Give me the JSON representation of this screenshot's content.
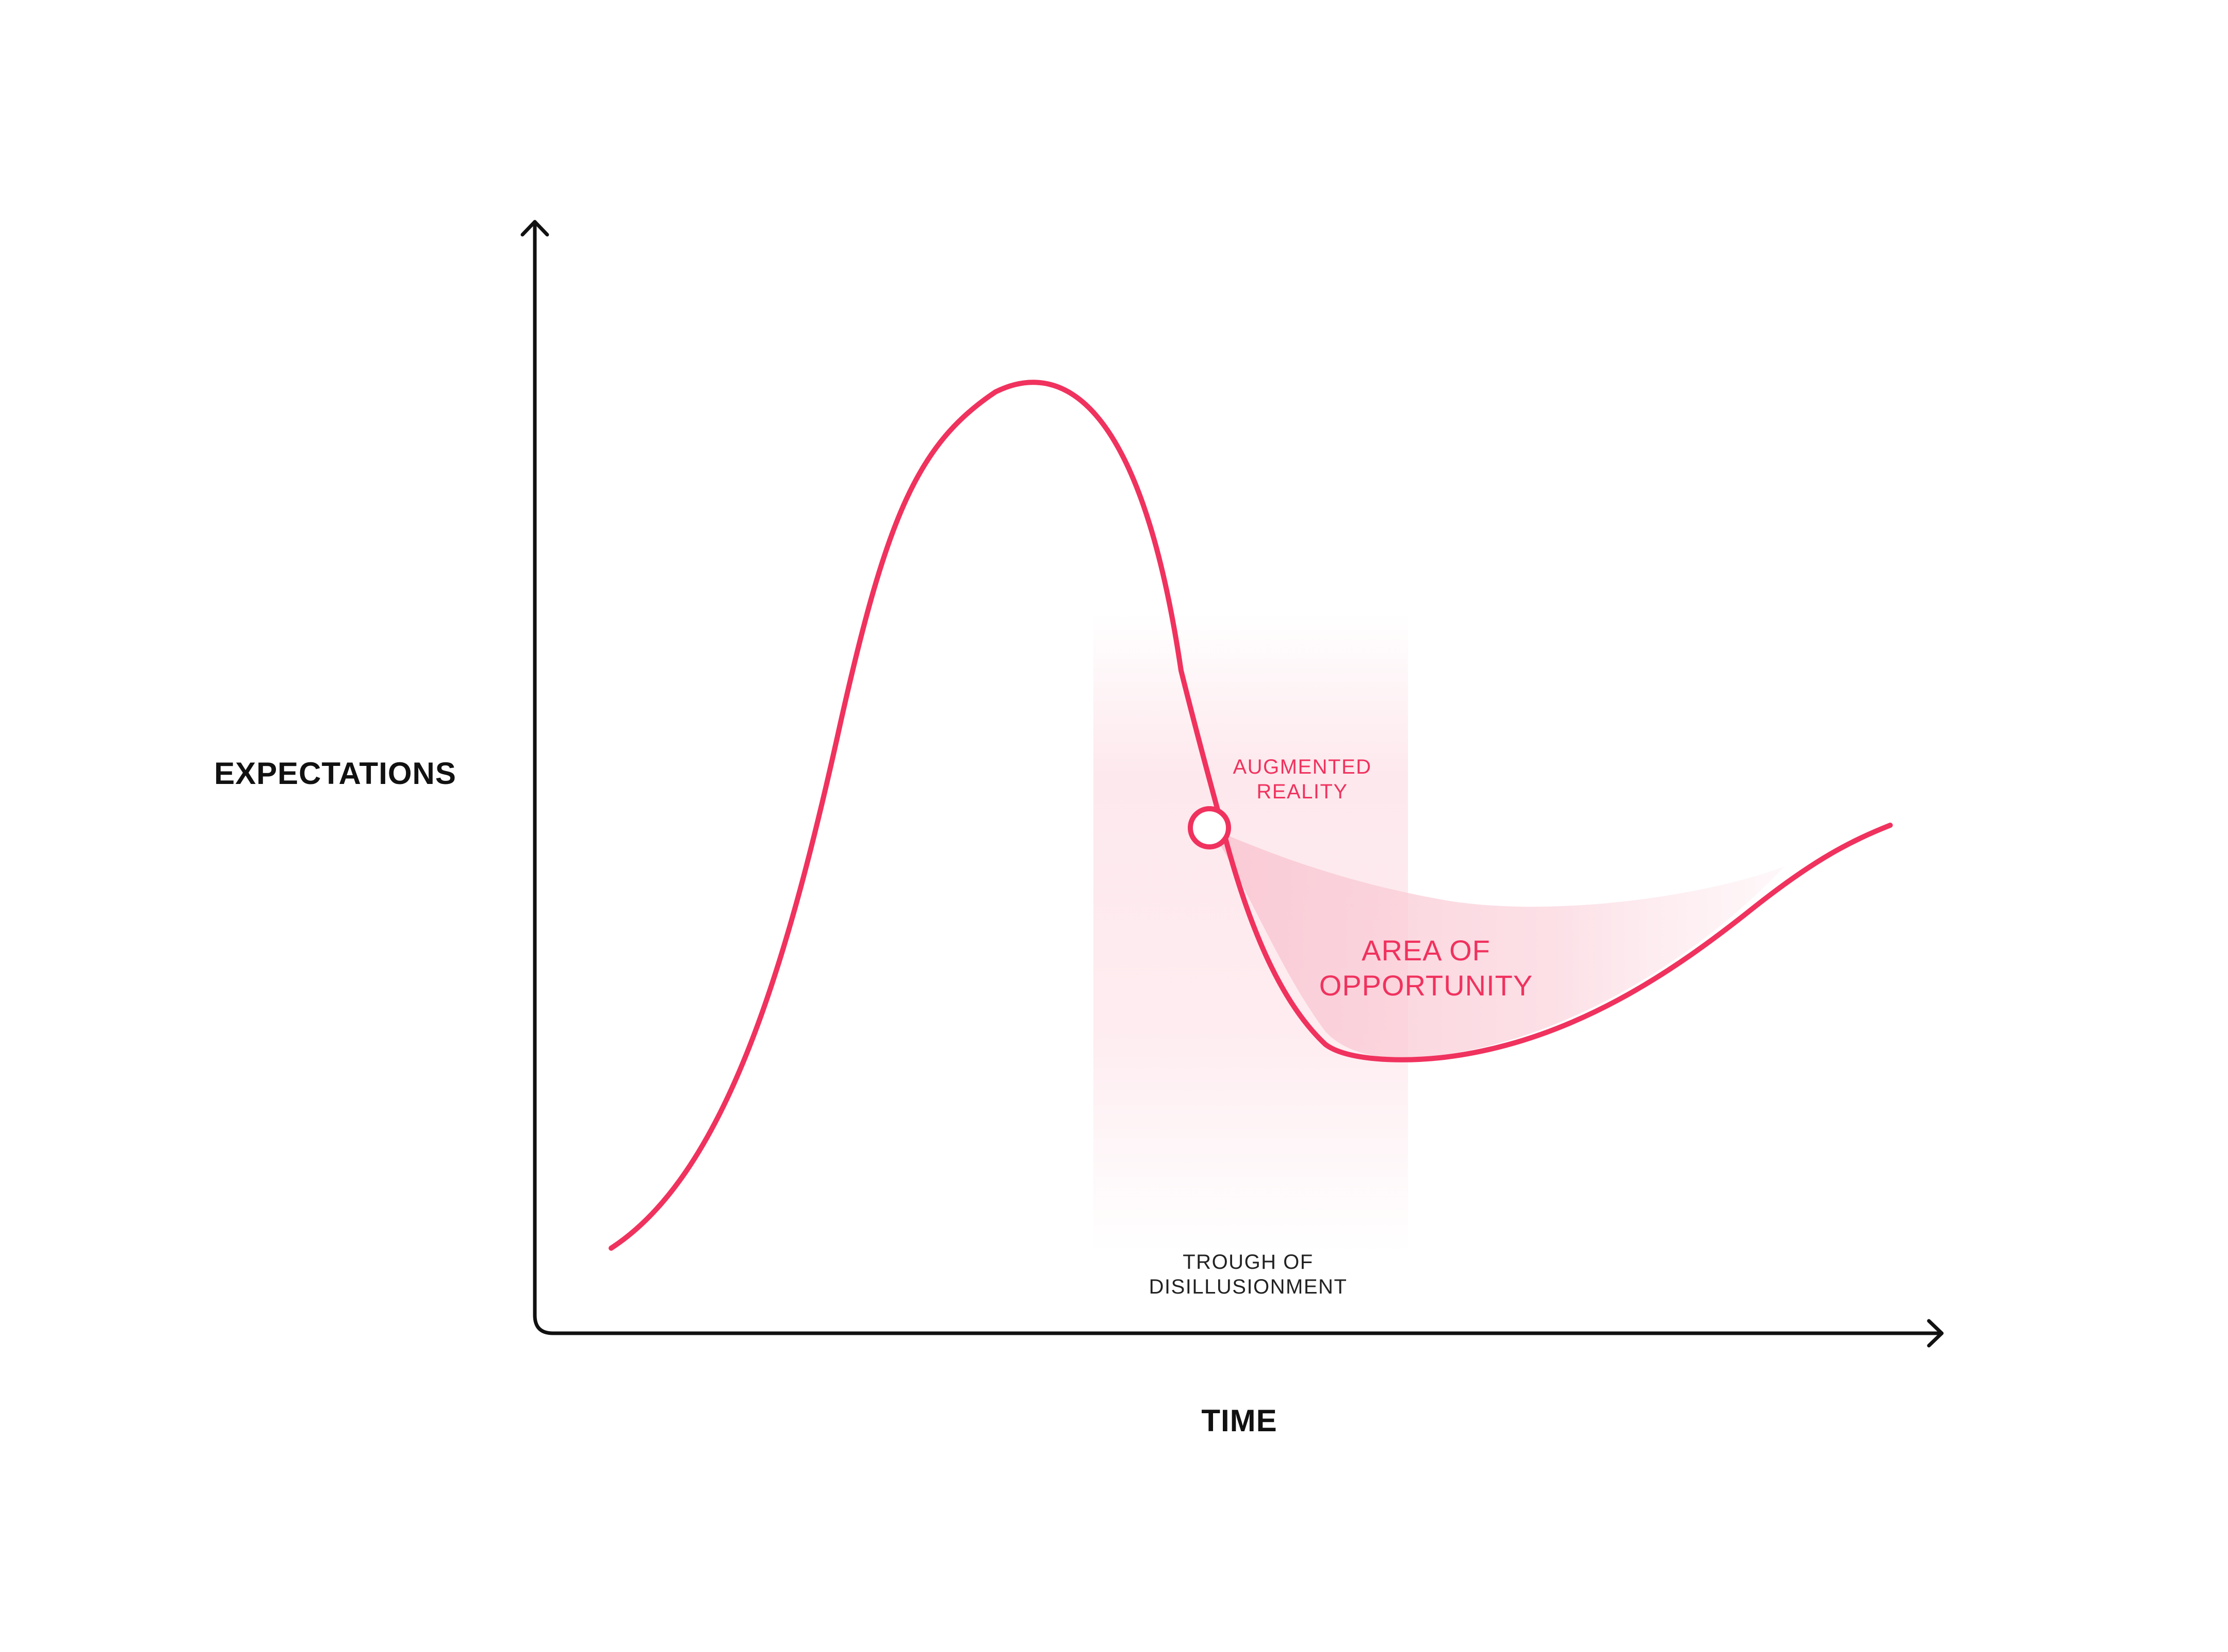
{
  "axes": {
    "y_label": "EXPECTATIONS",
    "x_label": "TIME"
  },
  "annotations": {
    "marker_label_line1": "AUGMENTED",
    "marker_label_line2": "REALITY",
    "area_label_line1": "AREA OF",
    "area_label_line2": "OPPORTUNITY",
    "zone_label_line1": "TROUGH OF",
    "zone_label_line2": "DISILLUSIONMENT"
  },
  "colors": {
    "accent": "#F0325E",
    "axis": "#111111",
    "zone_fill": "#FDE6EB",
    "area_fill": "#FBD3DC"
  }
}
